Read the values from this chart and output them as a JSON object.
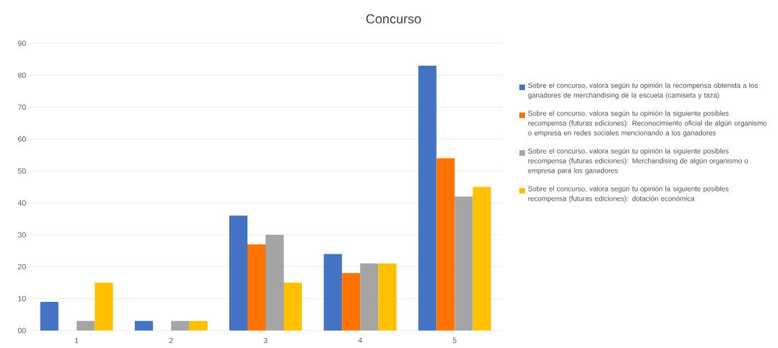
{
  "chart_data": {
    "type": "bar",
    "title": "Concurso",
    "categories": [
      "1",
      "2",
      "3",
      "4",
      "5"
    ],
    "series": [
      {
        "name": "Sobre el concurso, valora según tu opinión la recompensa obtenida a los ganadores de merchandising de la escuela (camiseta y taza)",
        "color": "#4472c4",
        "values": [
          9,
          3,
          36,
          24,
          83
        ]
      },
      {
        "name": "Sobre el concurso, valora según tu opinión la siguiente posibles recompensa (futuras ediciones): Reconocimiento oficial de algún organismo o empresa en redes sociales mencionando a los ganadores",
        "color": "#ff7300",
        "values": [
          0,
          0,
          27,
          18,
          54
        ]
      },
      {
        "name": "Sobre el concurso, valora según tu opinión la siguiente posibles recompensa (futuras ediciones): Merchandising de algún organismo o empresa para los ganadores",
        "color": "#a5a5a5",
        "values": [
          3,
          3,
          30,
          21,
          42
        ]
      },
      {
        "name": "Sobre el concurso, valora según tu opinión la siguiente posibles recompensa (futuras ediciones): dotación económica",
        "color": "#ffc000",
        "values": [
          15,
          3,
          15,
          21,
          45
        ]
      }
    ],
    "ylim": [
      0,
      90
    ],
    "yticks": [
      {
        "value": 0,
        "label": "00"
      },
      10,
      20,
      30,
      40,
      50,
      60,
      70,
      80,
      90
    ],
    "grid": "y",
    "legend": "right"
  }
}
